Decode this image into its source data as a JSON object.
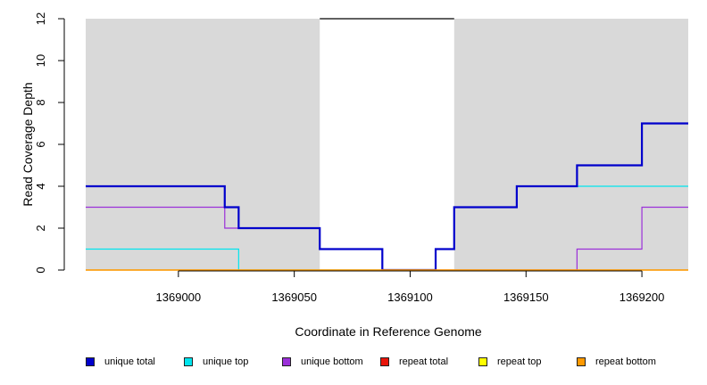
{
  "chart_data": {
    "type": "line",
    "step": true,
    "title": "",
    "xlabel": "Coordinate in Reference Genome",
    "ylabel": "Read Coverage Depth",
    "xlim": [
      1368960,
      1369220
    ],
    "ylim": [
      0,
      12
    ],
    "x_ticks": [
      1369000,
      1369050,
      1369100,
      1369150,
      1369200
    ],
    "x_tick_labels": [
      "1369000",
      "1369050",
      "1369100",
      "1369150",
      "1369200"
    ],
    "y_ticks": [
      0,
      2,
      4,
      6,
      8,
      10,
      12
    ],
    "y_tick_labels": [
      "0",
      "2",
      "4",
      "6",
      "8",
      "10",
      "12"
    ],
    "shaded_regions": [
      {
        "x_start": 1368960,
        "x_end": 1369061,
        "color": "#d9d9d9"
      },
      {
        "x_start": 1369119,
        "x_end": 1369220,
        "color": "#d9d9d9"
      }
    ],
    "reference_line": {
      "y": 12,
      "x_start": 1369061,
      "x_end": 1369119,
      "color": "#000000"
    },
    "series": [
      {
        "name": "unique bottom",
        "color": "#9b30d9",
        "width": 1.2,
        "x": [
          1368960,
          1369020,
          1369026,
          1369061,
          1369088,
          1369111,
          1369119,
          1369172,
          1369200
        ],
        "y": [
          3,
          2,
          2,
          1,
          0,
          0,
          0,
          1,
          3
        ]
      },
      {
        "name": "unique top",
        "color": "#00e5ee",
        "width": 1.2,
        "x": [
          1368960,
          1369026,
          1369111,
          1369119,
          1369146,
          1369172
        ],
        "y": [
          1,
          0,
          1,
          3,
          4,
          4
        ]
      },
      {
        "name": "unique total",
        "color": "#0000cc",
        "width": 2.2,
        "x": [
          1368960,
          1369020,
          1369026,
          1369061,
          1369088,
          1369111,
          1369119,
          1369146,
          1369172,
          1369200
        ],
        "y": [
          4,
          3,
          2,
          1,
          0,
          1,
          3,
          4,
          5,
          7
        ]
      },
      {
        "name": "repeat total",
        "color": "#e8140a",
        "width": 1.2,
        "x": [
          1368960
        ],
        "y": [
          0
        ]
      },
      {
        "name": "repeat top",
        "color": "#ffff00",
        "width": 1.2,
        "x": [
          1368960
        ],
        "y": [
          0
        ]
      },
      {
        "name": "repeat bottom",
        "color": "#ff9900",
        "width": 1.2,
        "x": [
          1368960
        ],
        "y": [
          0
        ]
      }
    ]
  },
  "legend": [
    {
      "label": "unique total",
      "color": "#0000cc"
    },
    {
      "label": "unique top",
      "color": "#00e5ee"
    },
    {
      "label": "unique bottom",
      "color": "#9b30d9"
    },
    {
      "label": "repeat total",
      "color": "#e8140a"
    },
    {
      "label": "repeat top",
      "color": "#ffff00"
    },
    {
      "label": "repeat bottom",
      "color": "#ff9900"
    }
  ]
}
